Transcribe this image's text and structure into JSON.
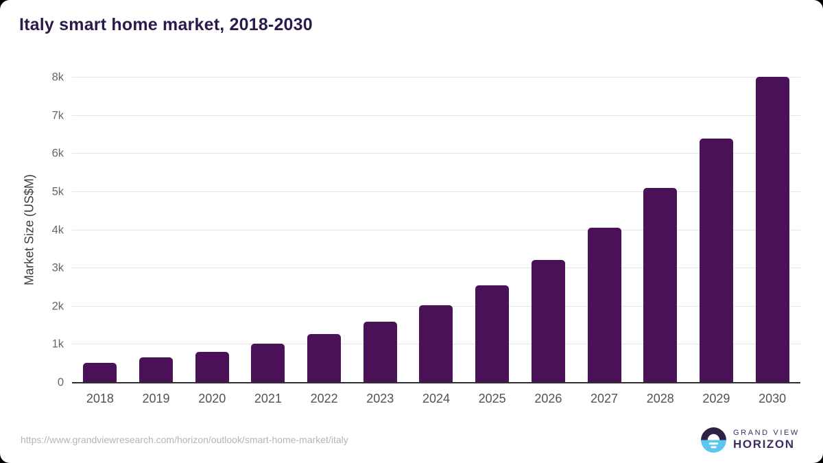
{
  "chart": {
    "title": "Italy smart home market, 2018-2030",
    "ylabel": "Market Size (US$M)"
  },
  "chart_data": {
    "type": "bar",
    "title": "Italy smart home market, 2018-2030",
    "xlabel": "",
    "ylabel": "Market Size (US$M)",
    "categories": [
      "2018",
      "2019",
      "2020",
      "2021",
      "2022",
      "2023",
      "2024",
      "2025",
      "2026",
      "2027",
      "2028",
      "2029",
      "2030"
    ],
    "values": [
      520,
      670,
      805,
      1030,
      1270,
      1600,
      2035,
      2555,
      3220,
      4055,
      5110,
      6400,
      8020
    ],
    "ylim": [
      0,
      8000
    ],
    "ytick_interval": 1000,
    "ytick_labels": [
      "0",
      "1k",
      "2k",
      "3k",
      "4k",
      "5k",
      "6k",
      "7k",
      "8k"
    ],
    "grid": "horizontal",
    "legend_position": "none",
    "bar_color": "#4a1159"
  },
  "footer": {
    "source_url": "https://www.grandviewresearch.com/horizon/outlook/smart-home-market/italy",
    "brand_line1": "GRAND VIEW",
    "brand_line2": "HORIZON"
  },
  "colors": {
    "bar": "#4a1159",
    "title": "#2b1b4d",
    "gridline": "#e5e5e5",
    "axis_line": "#2f2f2f",
    "tick_text": "#666666",
    "url_text": "#b4b4b4",
    "logo_navy": "#2d2145",
    "logo_blue": "#5bc7ef"
  },
  "icons": {
    "horizon_logo": "sun-over-horizon-circle"
  }
}
